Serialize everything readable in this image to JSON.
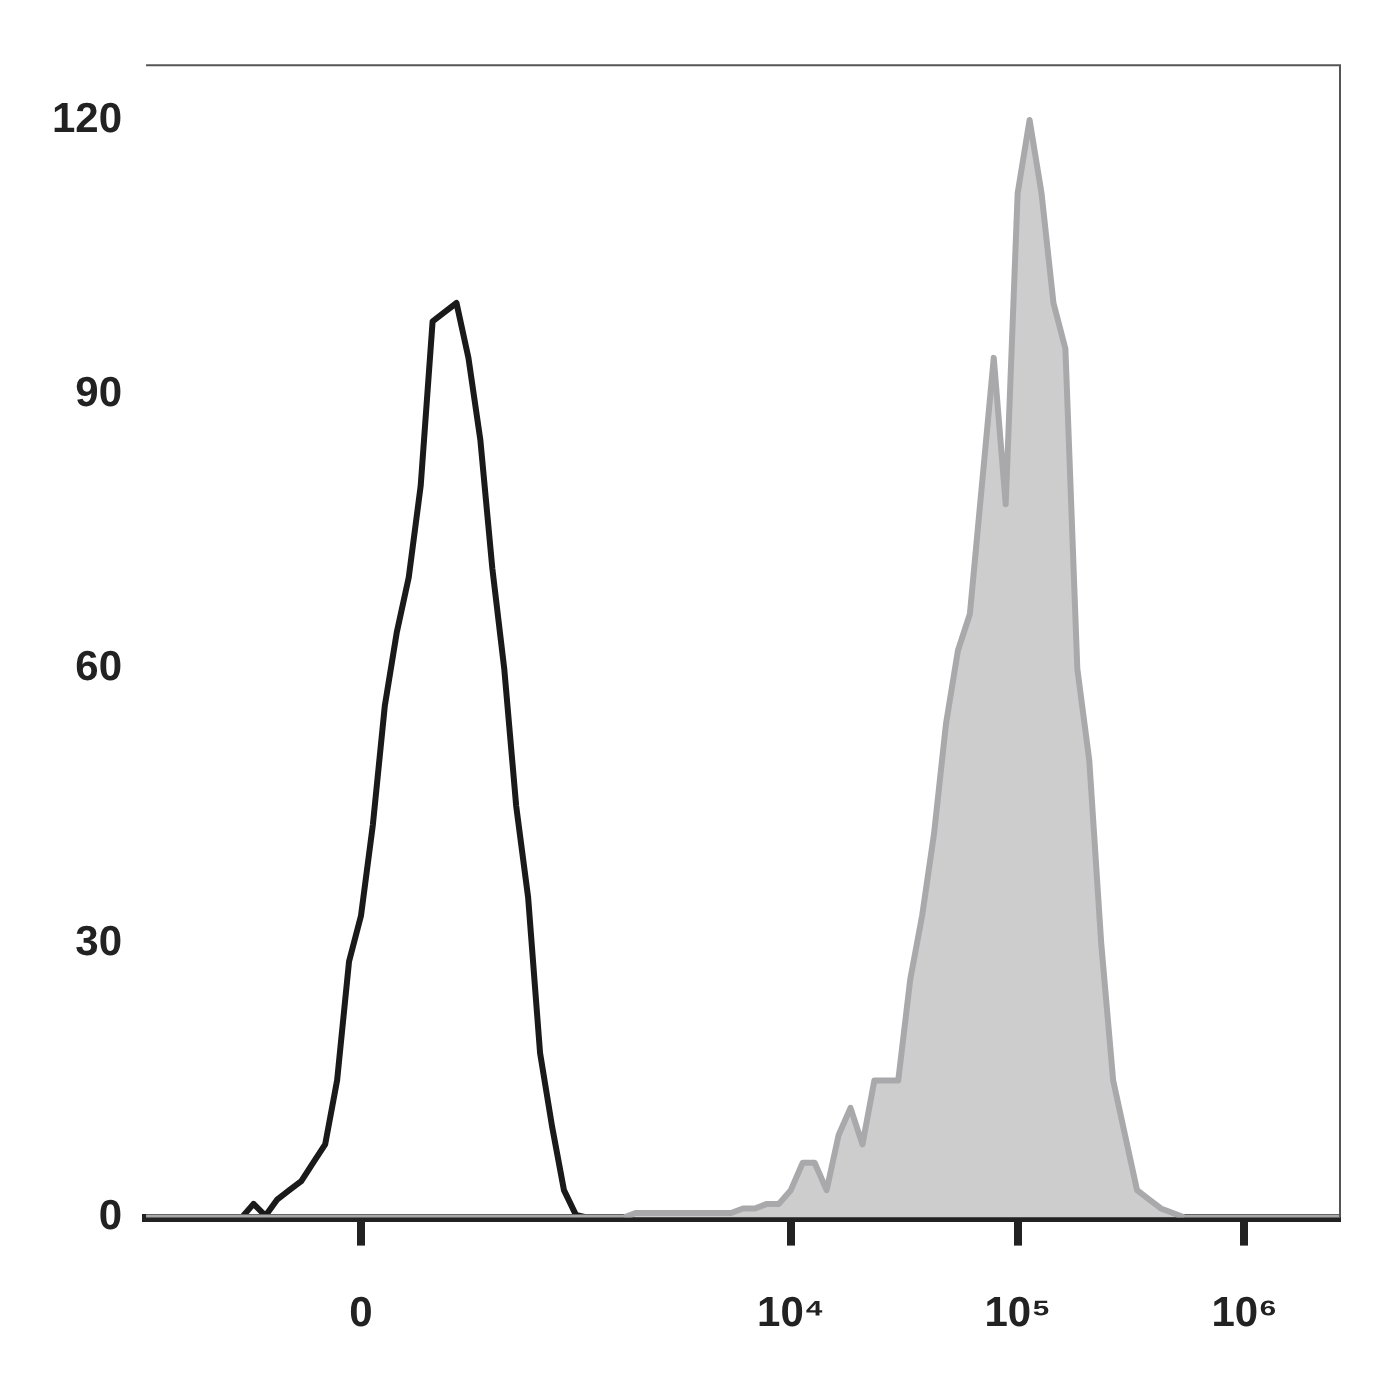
{
  "chart_data": {
    "type": "line",
    "ylim": [
      0,
      126
    ],
    "categories": [
      null,
      null,
      null,
      null,
      null,
      null,
      null,
      null,
      null,
      null,
      null,
      null,
      null,
      null,
      null,
      null,
      null,
      null,
      "0",
      null,
      null,
      null,
      null,
      null,
      null,
      null,
      null,
      null,
      null,
      null,
      null,
      null,
      null,
      null,
      null,
      null,
      null,
      null,
      null,
      null,
      null,
      null,
      null,
      null,
      null,
      null,
      null,
      null,
      null,
      null,
      null,
      null,
      null,
      null,
      "10⁴",
      null,
      null,
      null,
      null,
      null,
      null,
      null,
      null,
      null,
      null,
      null,
      null,
      null,
      null,
      null,
      null,
      null,
      null,
      "10⁵",
      null,
      null,
      null,
      null,
      null,
      null,
      null,
      null,
      null,
      null,
      null,
      null,
      null,
      null,
      null,
      null,
      null,
      null,
      "10⁶",
      null,
      null,
      null,
      null,
      null,
      null,
      null,
      null
    ],
    "yticks": [
      0,
      30,
      60,
      90,
      120
    ],
    "grid": false,
    "legend": false,
    "marker": "none",
    "line_style": "solid",
    "series": [
      {
        "type": "area",
        "color": "#cdcdcd",
        "values": [
          0,
          0,
          0,
          0,
          0,
          0,
          0,
          0,
          0,
          0,
          0,
          0,
          0,
          0,
          0,
          0,
          0,
          0,
          0,
          0,
          0,
          0,
          0,
          0,
          0,
          0,
          0,
          0,
          0,
          0,
          0,
          0,
          0,
          0,
          0,
          0,
          0,
          0,
          0,
          0,
          0,
          0.5,
          0.5,
          0.5,
          0.5,
          0.5,
          0.5,
          0.5,
          0.5,
          0.5,
          1,
          1,
          1.5,
          1.5,
          3,
          6,
          6,
          3,
          9,
          12,
          8,
          15,
          15,
          15,
          26,
          33,
          42,
          54,
          62,
          66,
          80,
          94,
          78,
          112,
          120,
          112,
          100,
          95,
          60,
          50,
          30,
          15,
          9,
          3,
          2,
          1,
          0.5,
          0,
          0,
          0,
          0,
          0,
          0,
          0,
          0,
          0,
          0,
          0,
          0,
          0,
          0
        ]
      },
      {
        "type": "line",
        "color": "#1a1a1a",
        "values": [
          0,
          0,
          0,
          0,
          0,
          0,
          0,
          0,
          0,
          1.5,
          0.2,
          2,
          3,
          4,
          6,
          8,
          15,
          28,
          33,
          43,
          56,
          64,
          70,
          80,
          98,
          99,
          100,
          94,
          85,
          71,
          60,
          45,
          35,
          18,
          10,
          3,
          0.3,
          0,
          0,
          0,
          0,
          0,
          0,
          0,
          0,
          0,
          0,
          0,
          0,
          0,
          0,
          0,
          0,
          0,
          0,
          0,
          0,
          0,
          0,
          0,
          0,
          0,
          0,
          0,
          0,
          0,
          0,
          0,
          0,
          0,
          0,
          0,
          0,
          0,
          0,
          0,
          0,
          0,
          0,
          0,
          0,
          0,
          0,
          0,
          0,
          0,
          0,
          0,
          0,
          0,
          0,
          0,
          0,
          0,
          0,
          0,
          0,
          0,
          0,
          0,
          0
        ]
      }
    ]
  }
}
